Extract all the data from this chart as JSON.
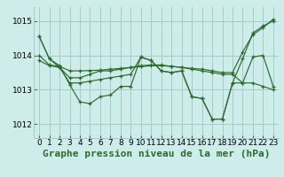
{
  "background_color": "#ceecea",
  "grid_color": "#9ecfca",
  "line_color": "#2d6b2d",
  "title": "Graphe pression niveau de la mer (hPa)",
  "ylim": [
    1011.6,
    1015.4
  ],
  "xlim": [
    -0.5,
    23.5
  ],
  "yticks": [
    1012,
    1013,
    1014,
    1015
  ],
  "xticks": [
    0,
    1,
    2,
    3,
    4,
    5,
    6,
    7,
    8,
    9,
    10,
    11,
    12,
    13,
    14,
    15,
    16,
    17,
    18,
    19,
    20,
    21,
    22,
    23
  ],
  "series": [
    [
      1014.55,
      1013.9,
      1013.7,
      1013.15,
      1012.65,
      1012.6,
      1012.8,
      1012.85,
      1013.1,
      1013.1,
      1013.95,
      1013.85,
      1013.55,
      1013.5,
      1013.55,
      1012.8,
      1012.75,
      1012.15,
      1012.15,
      1013.2,
      1013.2,
      1013.95,
      1014.0,
      1013.1
    ],
    [
      1013.85,
      1013.7,
      1013.65,
      1013.35,
      1013.35,
      1013.45,
      1013.55,
      1013.55,
      1013.6,
      1013.65,
      1013.7,
      1013.72,
      1013.72,
      1013.68,
      1013.65,
      1013.6,
      1013.55,
      1013.5,
      1013.45,
      1013.45,
      1013.2,
      1013.2,
      1013.1,
      1013.0
    ],
    [
      1014.55,
      1013.9,
      1013.65,
      1013.2,
      1013.2,
      1013.25,
      1013.3,
      1013.35,
      1013.4,
      1013.45,
      1013.95,
      1013.85,
      1013.55,
      1013.5,
      1013.55,
      1012.8,
      1012.75,
      1012.15,
      1012.15,
      1013.2,
      1013.9,
      1014.65,
      1014.85,
      1015.0
    ],
    [
      1014.0,
      1013.72,
      1013.68,
      1013.55,
      1013.55,
      1013.56,
      1013.57,
      1013.6,
      1013.62,
      1013.65,
      1013.67,
      1013.7,
      1013.7,
      1013.68,
      1013.65,
      1013.62,
      1013.6,
      1013.55,
      1013.5,
      1013.5,
      1014.1,
      1014.6,
      1014.8,
      1015.05
    ]
  ],
  "title_fontsize": 8,
  "tick_fontsize": 6.5
}
